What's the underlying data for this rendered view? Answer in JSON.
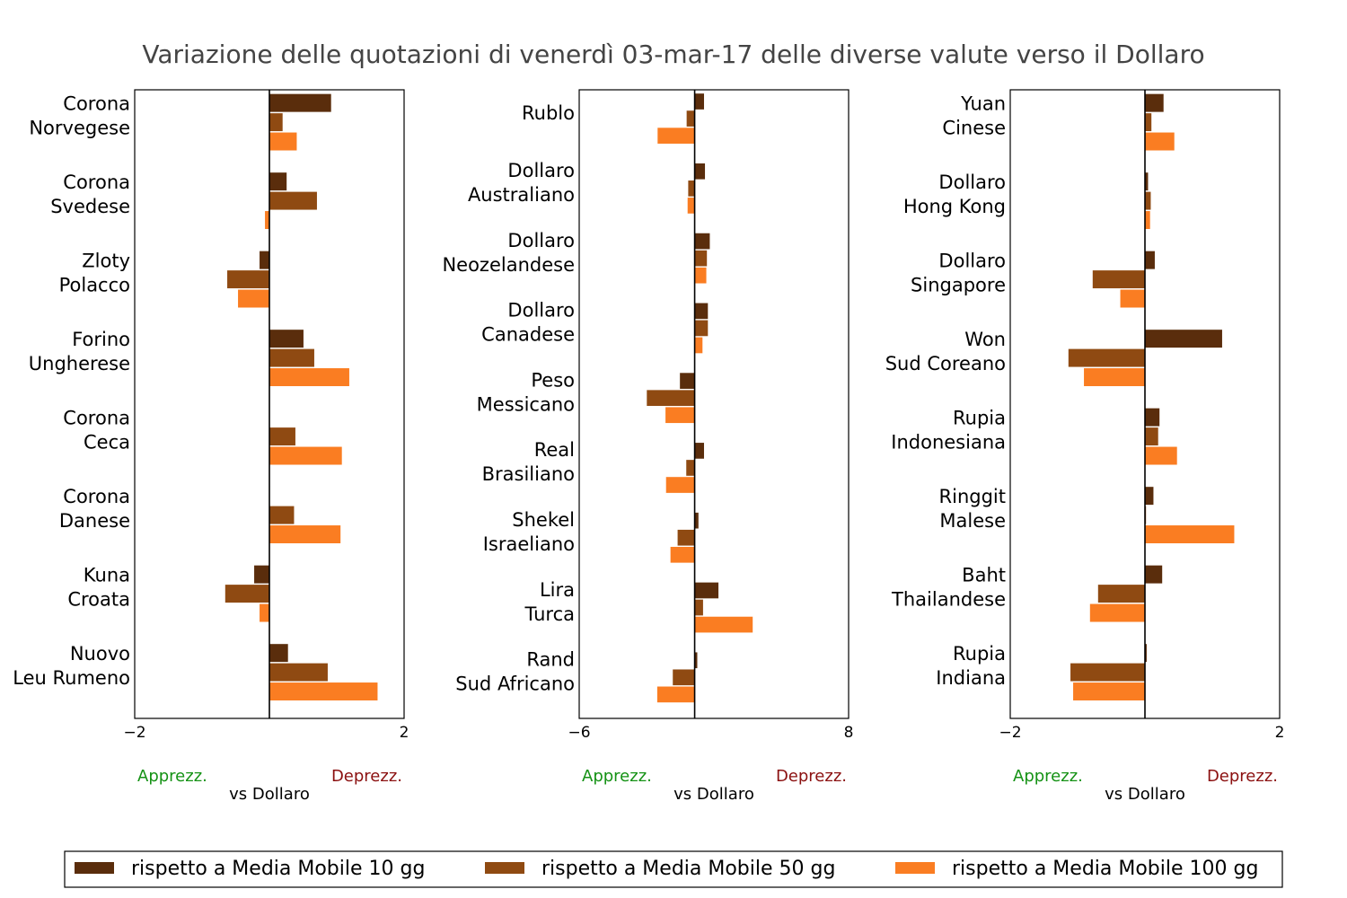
{
  "title": "Variazione delle quotazioni di venerdì 03-mar-17 delle diverse valute verso il Dollaro",
  "legend": {
    "placement": "bottom-center",
    "items": [
      {
        "label": "rispetto a Media Mobile 10 gg",
        "color": "#5a2d0c"
      },
      {
        "label": "rispetto a Media Mobile 50 gg",
        "color": "#8f4a12"
      },
      {
        "label": "rispetto a Media Mobile 100 gg",
        "color": "#fa7d22"
      }
    ]
  },
  "chart_data": [
    {
      "type": "bar",
      "orientation": "horizontal",
      "categories": [
        [
          "Corona",
          "Norvegese"
        ],
        [
          "Corona",
          "Svedese"
        ],
        [
          "Zloty",
          "Polacco"
        ],
        [
          "Forino",
          "Ungherese"
        ],
        [
          "Corona",
          "Ceca"
        ],
        [
          "Corona",
          "Danese"
        ],
        [
          "Kuna",
          "Croata"
        ],
        [
          "Nuovo",
          "Leu Rumeno"
        ]
      ],
      "series": [
        {
          "name": "rispetto a Media Mobile 10 gg",
          "values": [
            0.92,
            0.26,
            -0.15,
            0.51,
            -0.01,
            0.0,
            -0.23,
            0.28
          ]
        },
        {
          "name": "rispetto a Media Mobile 50 gg",
          "values": [
            0.2,
            0.71,
            -0.63,
            0.67,
            0.39,
            0.37,
            -0.66,
            0.87
          ]
        },
        {
          "name": "rispetto a Media Mobile 100 gg",
          "values": [
            0.41,
            -0.07,
            -0.47,
            1.19,
            1.08,
            1.06,
            -0.15,
            1.61
          ]
        }
      ],
      "xlim": [
        -2,
        2
      ],
      "xticks": [
        "−2",
        "2"
      ],
      "xlabel": "vs Dollaro",
      "xlabel_left": "Apprezz.",
      "xlabel_right": "Deprezz.",
      "grid": false
    },
    {
      "type": "bar",
      "orientation": "horizontal",
      "categories": [
        [
          "Rublo"
        ],
        [
          "Dollaro",
          "Australiano"
        ],
        [
          "Dollaro",
          "Neozelandese"
        ],
        [
          "Dollaro",
          "Canadese"
        ],
        [
          "Peso",
          "Messicano"
        ],
        [
          "Real",
          "Brasiliano"
        ],
        [
          "Shekel",
          "Israeliano"
        ],
        [
          "Lira",
          "Turca"
        ],
        [
          "Rand",
          "Sud Africano"
        ]
      ],
      "series": [
        {
          "name": "rispetto a Media Mobile 10 gg",
          "values": [
            0.5,
            0.55,
            0.8,
            0.7,
            -0.78,
            0.5,
            0.21,
            1.25,
            0.15
          ]
        },
        {
          "name": "rispetto a Media Mobile 50 gg",
          "values": [
            -0.43,
            -0.35,
            0.65,
            0.7,
            -2.5,
            -0.45,
            -0.9,
            0.45,
            -1.15
          ]
        },
        {
          "name": "rispetto a Media Mobile 100 gg",
          "values": [
            -1.94,
            -0.38,
            0.62,
            0.42,
            -1.53,
            -1.5,
            -1.27,
            3.03,
            -1.96
          ]
        }
      ],
      "xlim": [
        -6,
        8
      ],
      "xticks": [
        "−6",
        "8"
      ],
      "xlabel": "vs Dollaro",
      "xlabel_left": "Apprezz.",
      "xlabel_right": "Deprezz.",
      "grid": false
    },
    {
      "type": "bar",
      "orientation": "horizontal",
      "categories": [
        [
          "Yuan",
          "Cinese"
        ],
        [
          "Dollaro",
          "Hong Kong"
        ],
        [
          "Dollaro",
          "Singapore"
        ],
        [
          "Won",
          "Sud Coreano"
        ],
        [
          "Rupia",
          "Indonesiana"
        ],
        [
          "Ringgit",
          "Malese"
        ],
        [
          "Baht",
          "Thailandese"
        ],
        [
          "Rupia",
          "Indiana"
        ]
      ],
      "series": [
        {
          "name": "rispetto a Media Mobile 10 gg",
          "values": [
            0.28,
            0.05,
            0.15,
            1.15,
            0.22,
            0.13,
            0.26,
            0.03
          ]
        },
        {
          "name": "rispetto a Media Mobile 50 gg",
          "values": [
            0.1,
            0.09,
            -0.78,
            -1.14,
            0.2,
            0.02,
            -0.7,
            -1.11
          ]
        },
        {
          "name": "rispetto a Media Mobile 100 gg",
          "values": [
            0.44,
            0.08,
            -0.37,
            -0.91,
            0.48,
            1.33,
            -0.82,
            -1.07
          ]
        }
      ],
      "xlim": [
        -2,
        2
      ],
      "xticks": [
        "−2",
        "2"
      ],
      "xlabel": "vs Dollaro",
      "xlabel_left": "Apprezz.",
      "xlabel_right": "Deprezz.",
      "grid": false
    }
  ],
  "colors": {
    "title": "#444444",
    "apprezz": "#159215",
    "deprezz": "#8b1010",
    "axis": "#000000"
  }
}
